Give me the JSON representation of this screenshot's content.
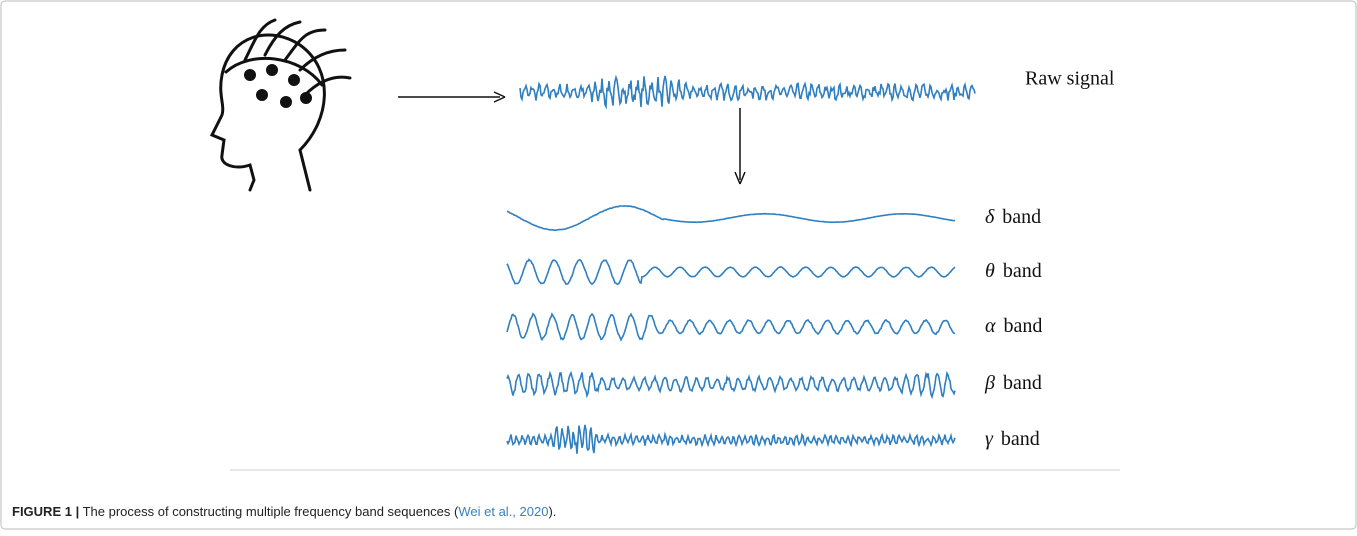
{
  "figure": {
    "raw_label": "Raw signal",
    "bands": [
      {
        "symbol": "δ",
        "text": "band"
      },
      {
        "symbol": "θ",
        "text": "band"
      },
      {
        "symbol": "α",
        "text": "band"
      },
      {
        "symbol": "β",
        "text": "band"
      },
      {
        "symbol": "γ",
        "text": "band"
      }
    ],
    "caption": {
      "label": "FIGURE 1 |",
      "text": "The process of constructing multiple frequency band sequences (",
      "citation": "Wei et al., 2020",
      "end": ")."
    }
  }
}
